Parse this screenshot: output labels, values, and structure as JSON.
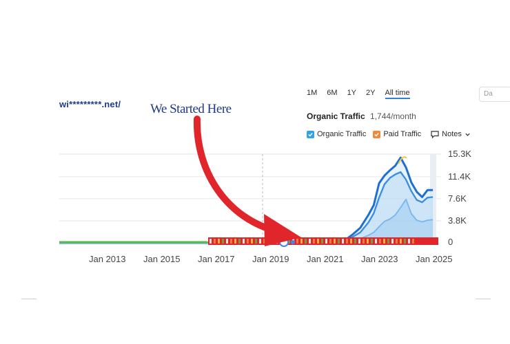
{
  "site": "wi*********.net/",
  "annotation": "We Started Here",
  "periods": [
    "1M",
    "6M",
    "1Y",
    "2Y",
    "All time"
  ],
  "active_period": "All time",
  "date_button": "Da",
  "traffic": {
    "label": "Organic Traffic",
    "value": "1,744/month"
  },
  "legend": {
    "organic": "Organic Traffic",
    "paid": "Paid Traffic",
    "notes": "Notes"
  },
  "colors": {
    "organic": "#2fa3e8",
    "paid": "#f08a3a",
    "arrow": "#e0262b",
    "baseline": "#57b84a"
  },
  "icons": [
    "checkbox-checked-icon",
    "notes-icon",
    "chevron-down-icon",
    "arrow-icon"
  ],
  "chart_data": {
    "type": "area",
    "title": "",
    "xlabel": "",
    "ylabel": "",
    "y_ticks": [
      "15.3K",
      "11.4K",
      "7.6K",
      "3.8K",
      "0"
    ],
    "x_ticks": [
      "Jan 2013",
      "Jan 2015",
      "Jan 2017",
      "Jan 2019",
      "Jan 2021",
      "Jan 2023",
      "Jan 2025"
    ],
    "ylim": [
      0,
      15300
    ],
    "xlim": [
      2011.0,
      2025.0
    ],
    "grid": true,
    "series": [
      {
        "name": "Organic Traffic",
        "x": [
          2011.0,
          2021.5,
          2021.9,
          2022.2,
          2022.5,
          2022.7,
          2022.9,
          2023.1,
          2023.3,
          2023.5,
          2023.7,
          2023.9,
          2024.1,
          2024.3,
          2024.5,
          2024.7,
          2024.9
        ],
        "y": [
          0,
          0,
          1400,
          2600,
          4800,
          6500,
          10300,
          11600,
          12500,
          13300,
          14700,
          13000,
          10400,
          8800,
          7900,
          9100,
          9100
        ]
      },
      {
        "x": [
          2011.0,
          2021.5,
          2021.9,
          2022.2,
          2022.5,
          2022.7,
          2022.9,
          2023.1,
          2023.3,
          2023.5,
          2023.7,
          2023.9,
          2024.1,
          2024.3,
          2024.5,
          2024.7,
          2024.9
        ],
        "y": [
          0,
          0,
          1000,
          1800,
          3500,
          5100,
          7800,
          10100,
          11200,
          11800,
          12200,
          10900,
          8900,
          7400,
          7000,
          7800,
          7900
        ]
      },
      {
        "x": [
          2011.0,
          2021.5,
          2021.9,
          2022.2,
          2022.5,
          2022.7,
          2022.9,
          2023.1,
          2023.3,
          2023.5,
          2023.7,
          2023.9,
          2024.1,
          2024.3,
          2024.5,
          2024.7,
          2024.9
        ],
        "y": [
          0,
          0,
          300,
          700,
          1300,
          1800,
          2800,
          3700,
          4100,
          4800,
          6100,
          7500,
          5000,
          3900,
          3600,
          3900,
          4000
        ]
      }
    ]
  }
}
